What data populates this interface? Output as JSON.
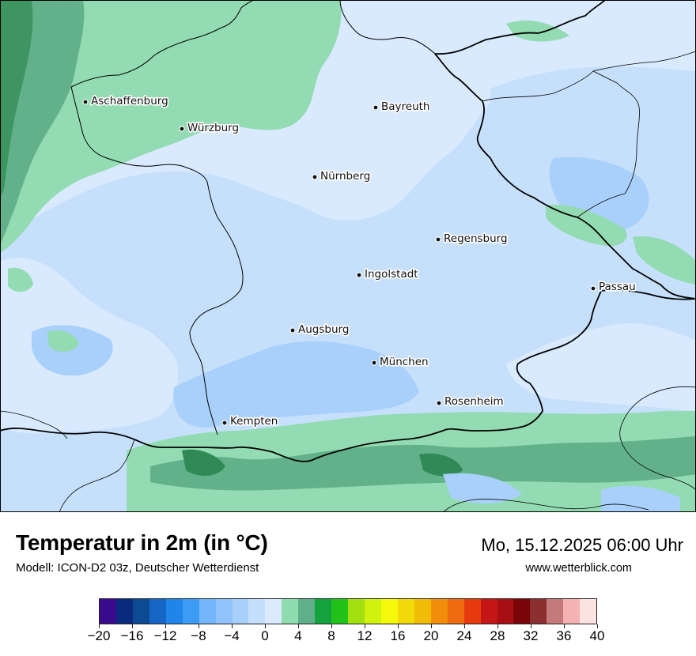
{
  "title": "Temperatur in 2m (in °C)",
  "subtitle": "Modell: ICON-D2 03z, Deutscher Wetterdienst",
  "datetime": "Mo, 15.12.2025 06:00 Uhr",
  "website": "www.wetterblick.com",
  "cities": [
    {
      "name": "Aschaffenburg"
    },
    {
      "name": "Würzburg"
    },
    {
      "name": "Bayreuth"
    },
    {
      "name": "Nürnberg"
    },
    {
      "name": "Regensburg"
    },
    {
      "name": "Ingolstadt"
    },
    {
      "name": "Passau"
    },
    {
      "name": "Augsburg"
    },
    {
      "name": "München"
    },
    {
      "name": "Rosenheim"
    },
    {
      "name": "Kempten"
    }
  ],
  "legend": {
    "unit": "°C",
    "ticks": [
      "−20",
      "−16",
      "−12",
      "−8",
      "−4",
      "0",
      "4",
      "8",
      "12",
      "16",
      "20",
      "24",
      "28",
      "32",
      "36",
      "40"
    ],
    "colors": [
      "#3a0a8c",
      "#0a2a80",
      "#0d4a94",
      "#1766c6",
      "#1f85ea",
      "#3c9cf5",
      "#74b6fb",
      "#8fc3f9",
      "#a8d0fb",
      "#c4dffc",
      "#dbebfd",
      "#8fdcb0",
      "#5fb08a",
      "#13a23e",
      "#23c21b",
      "#a2e10f",
      "#cff20e",
      "#f4f90b",
      "#f2d908",
      "#f1bc08",
      "#f28d0a",
      "#f06a10",
      "#e63a0e",
      "#c41616",
      "#a80f14",
      "#7a0508",
      "#8a3030",
      "#c47a7a",
      "#f5b2b2",
      "#fde2e2"
    ]
  },
  "map_palette": {
    "minus2_0": "#c3dffd",
    "zero_2": "#daeaff",
    "minus4_minus2": "#a9d0fb",
    "two_4": "#92dbb1",
    "four_6": "#62b189",
    "six_8": "#2f8a56",
    "borders": "#000000"
  }
}
